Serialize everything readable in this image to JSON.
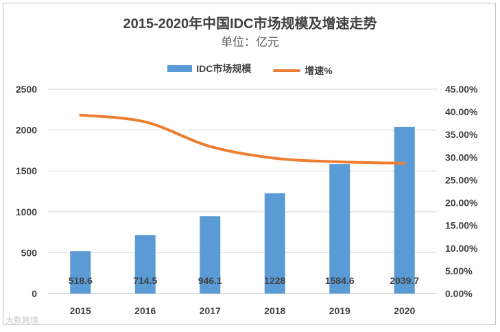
{
  "chart_data": {
    "type": "bar+line",
    "title": "2015-2020年中国IDC市场规模及增速走势",
    "subtitle": "单位：亿元",
    "categories": [
      "2015",
      "2016",
      "2017",
      "2018",
      "2019",
      "2020"
    ],
    "series": [
      {
        "name": "IDC市场规模",
        "type": "bar",
        "axis": "left",
        "values": [
          518.6,
          714.5,
          946.1,
          1228,
          1584.6,
          2039.7
        ],
        "labels": [
          "518.6",
          "714.5",
          "946.1",
          "1228",
          "1584.6",
          "2039.7"
        ],
        "color": "#5b9bd5"
      },
      {
        "name": "增速%",
        "type": "line",
        "axis": "right",
        "values": [
          39.3,
          37.8,
          32.4,
          29.8,
          29.0,
          28.7
        ],
        "color": "#ed7d31"
      }
    ],
    "y_left": {
      "lim": [
        0,
        2500
      ],
      "ticks": [
        "0",
        "500",
        "1000",
        "1500",
        "2000",
        "2500"
      ]
    },
    "y_right": {
      "lim": [
        0,
        45
      ],
      "ticks": [
        "0.00%",
        "5.00%",
        "10.00%",
        "15.00%",
        "20.00%",
        "25.00%",
        "30.00%",
        "35.00%",
        "40.00%",
        "45.00%"
      ]
    },
    "grid": true,
    "legend_position": "top"
  },
  "watermark": "大数跨境"
}
